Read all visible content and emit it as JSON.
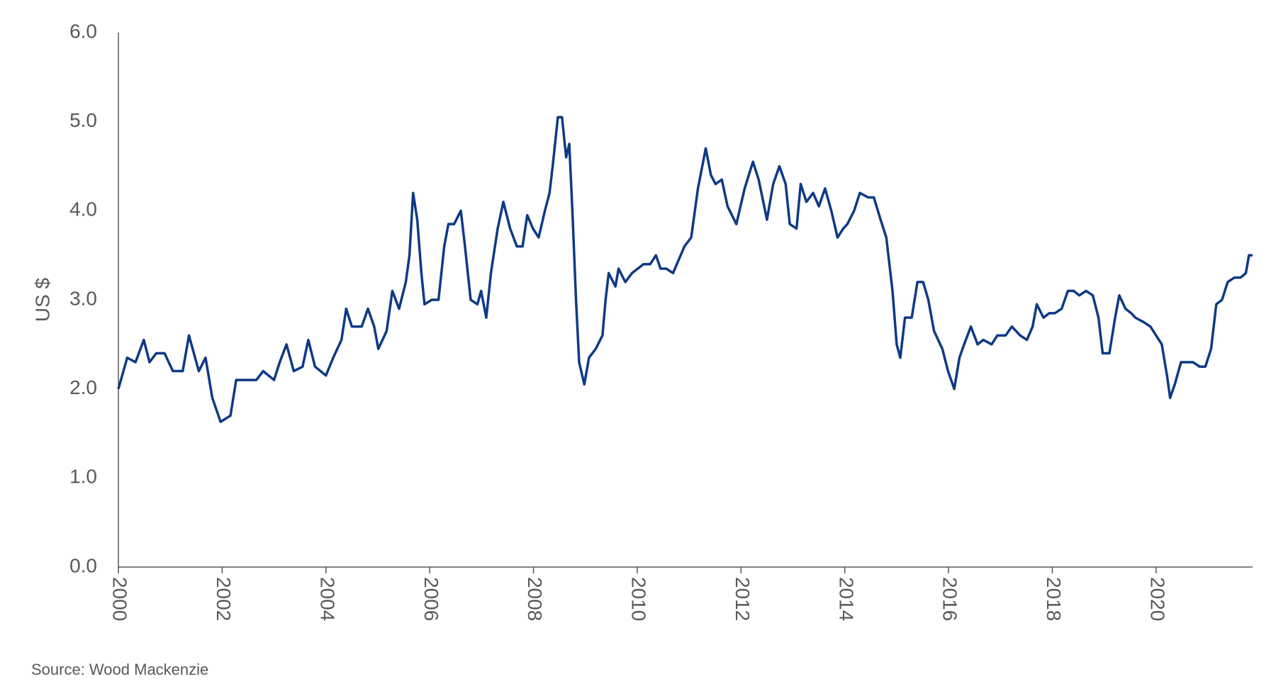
{
  "chart_data": {
    "type": "line",
    "y_label": "US $",
    "source": "Source: Wood Mackenzie",
    "color": "#0e3a85",
    "x": [
      2000.0,
      2000.17,
      2000.33,
      2000.49,
      2000.6,
      2000.73,
      2000.89,
      2001.05,
      2001.24,
      2001.36,
      2001.55,
      2001.68,
      2001.81,
      2001.97,
      2002.16,
      2002.27,
      2002.47,
      2002.66,
      2002.79,
      2003.0,
      2003.11,
      2003.24,
      2003.38,
      2003.55,
      2003.66,
      2003.79,
      2004.0,
      2004.14,
      2004.3,
      2004.39,
      2004.5,
      2004.69,
      2004.81,
      2004.93,
      2005.01,
      2005.17,
      2005.28,
      2005.41,
      2005.54,
      2005.61,
      2005.68,
      2005.76,
      2005.84,
      2005.9,
      2006.04,
      2006.17,
      2006.28,
      2006.36,
      2006.47,
      2006.6,
      2006.68,
      2006.79,
      2006.92,
      2006.99,
      2007.09,
      2007.18,
      2007.31,
      2007.42,
      2007.55,
      2007.68,
      2007.79,
      2007.88,
      2007.99,
      2008.1,
      2008.22,
      2008.31,
      2008.37,
      2008.47,
      2008.55,
      2008.63,
      2008.69,
      2008.75,
      2008.82,
      2008.88,
      2008.98,
      2009.07,
      2009.2,
      2009.33,
      2009.39,
      2009.45,
      2009.58,
      2009.64,
      2009.77,
      2009.9,
      2010.01,
      2010.12,
      2010.25,
      2010.36,
      2010.45,
      2010.56,
      2010.69,
      2010.8,
      2010.91,
      2011.04,
      2011.17,
      2011.32,
      2011.42,
      2011.51,
      2011.63,
      2011.74,
      2011.91,
      2012.07,
      2012.23,
      2012.34,
      2012.5,
      2012.62,
      2012.74,
      2012.86,
      2012.94,
      2013.07,
      2013.15,
      2013.26,
      2013.39,
      2013.5,
      2013.62,
      2013.74,
      2013.86,
      2013.97,
      2014.05,
      2014.18,
      2014.29,
      2014.45,
      2014.56,
      2014.69,
      2014.8,
      2014.92,
      2015.0,
      2015.07,
      2015.16,
      2015.29,
      2015.4,
      2015.51,
      2015.61,
      2015.72,
      2015.88,
      2015.99,
      2016.11,
      2016.21,
      2016.3,
      2016.43,
      2016.56,
      2016.67,
      2016.83,
      2016.94,
      2017.1,
      2017.22,
      2017.38,
      2017.51,
      2017.62,
      2017.7,
      2017.83,
      2017.94,
      2018.05,
      2018.18,
      2018.3,
      2018.41,
      2018.52,
      2018.65,
      2018.78,
      2018.89,
      2018.97,
      2019.1,
      2019.21,
      2019.29,
      2019.41,
      2019.52,
      2019.6,
      2019.76,
      2019.89,
      2020.0,
      2020.11,
      2020.21,
      2020.27,
      2020.36,
      2020.48,
      2020.59,
      2020.71,
      2020.84,
      2020.95,
      2021.06,
      2021.16,
      2021.27,
      2021.38,
      2021.51,
      2021.63,
      2021.73,
      2021.79,
      2021.86
    ],
    "values": [
      2.0,
      2.35,
      2.3,
      2.55,
      2.3,
      2.4,
      2.4,
      2.2,
      2.2,
      2.6,
      2.2,
      2.35,
      1.9,
      1.63,
      1.7,
      2.1,
      2.1,
      2.1,
      2.2,
      2.1,
      2.3,
      2.5,
      2.2,
      2.25,
      2.55,
      2.25,
      2.15,
      2.35,
      2.55,
      2.9,
      2.7,
      2.7,
      2.9,
      2.7,
      2.45,
      2.65,
      3.1,
      2.9,
      3.2,
      3.5,
      4.2,
      3.9,
      3.3,
      2.95,
      3.0,
      3.0,
      3.6,
      3.85,
      3.85,
      4.0,
      3.6,
      3.0,
      2.95,
      3.1,
      2.8,
      3.3,
      3.8,
      4.1,
      3.8,
      3.6,
      3.6,
      3.95,
      3.8,
      3.7,
      4.0,
      4.2,
      4.5,
      5.05,
      5.05,
      4.6,
      4.75,
      4.0,
      3.0,
      2.3,
      2.05,
      2.35,
      2.45,
      2.6,
      3.0,
      3.3,
      3.15,
      3.35,
      3.2,
      3.3,
      3.35,
      3.4,
      3.4,
      3.5,
      3.35,
      3.35,
      3.3,
      3.45,
      3.6,
      3.7,
      4.25,
      4.7,
      4.4,
      4.3,
      4.35,
      4.05,
      3.85,
      4.25,
      4.55,
      4.35,
      3.9,
      4.3,
      4.5,
      4.3,
      3.85,
      3.8,
      4.3,
      4.1,
      4.2,
      4.05,
      4.25,
      4.0,
      3.7,
      3.8,
      3.85,
      4.0,
      4.2,
      4.15,
      4.15,
      3.9,
      3.7,
      3.1,
      2.5,
      2.35,
      2.8,
      2.8,
      3.2,
      3.2,
      3.0,
      2.65,
      2.45,
      2.2,
      2.0,
      2.35,
      2.5,
      2.7,
      2.5,
      2.55,
      2.5,
      2.6,
      2.6,
      2.7,
      2.6,
      2.55,
      2.7,
      2.95,
      2.8,
      2.85,
      2.85,
      2.9,
      3.1,
      3.1,
      3.05,
      3.1,
      3.05,
      2.8,
      2.4,
      2.4,
      2.8,
      3.05,
      2.9,
      2.85,
      2.8,
      2.75,
      2.7,
      2.6,
      2.5,
      2.15,
      1.9,
      2.05,
      2.3,
      2.3,
      2.3,
      2.25,
      2.25,
      2.45,
      2.95,
      3.0,
      3.2,
      3.25,
      3.25,
      3.3,
      3.5,
      3.5
    ],
    "xlim": [
      2000,
      2021.86
    ],
    "xticks": [
      2000,
      2002,
      2004,
      2006,
      2008,
      2010,
      2012,
      2014,
      2016,
      2018,
      2020
    ],
    "ylim": [
      0,
      6
    ],
    "yticks": [
      {
        "value": 0,
        "label": "0.0"
      },
      {
        "value": 1,
        "label": "1.0"
      },
      {
        "value": 2,
        "label": "2.0"
      },
      {
        "value": 3,
        "label": "3.0"
      },
      {
        "value": 4,
        "label": "4.0"
      },
      {
        "value": 5,
        "label": "5.0"
      },
      {
        "value": 6,
        "label": "6.0"
      }
    ]
  }
}
